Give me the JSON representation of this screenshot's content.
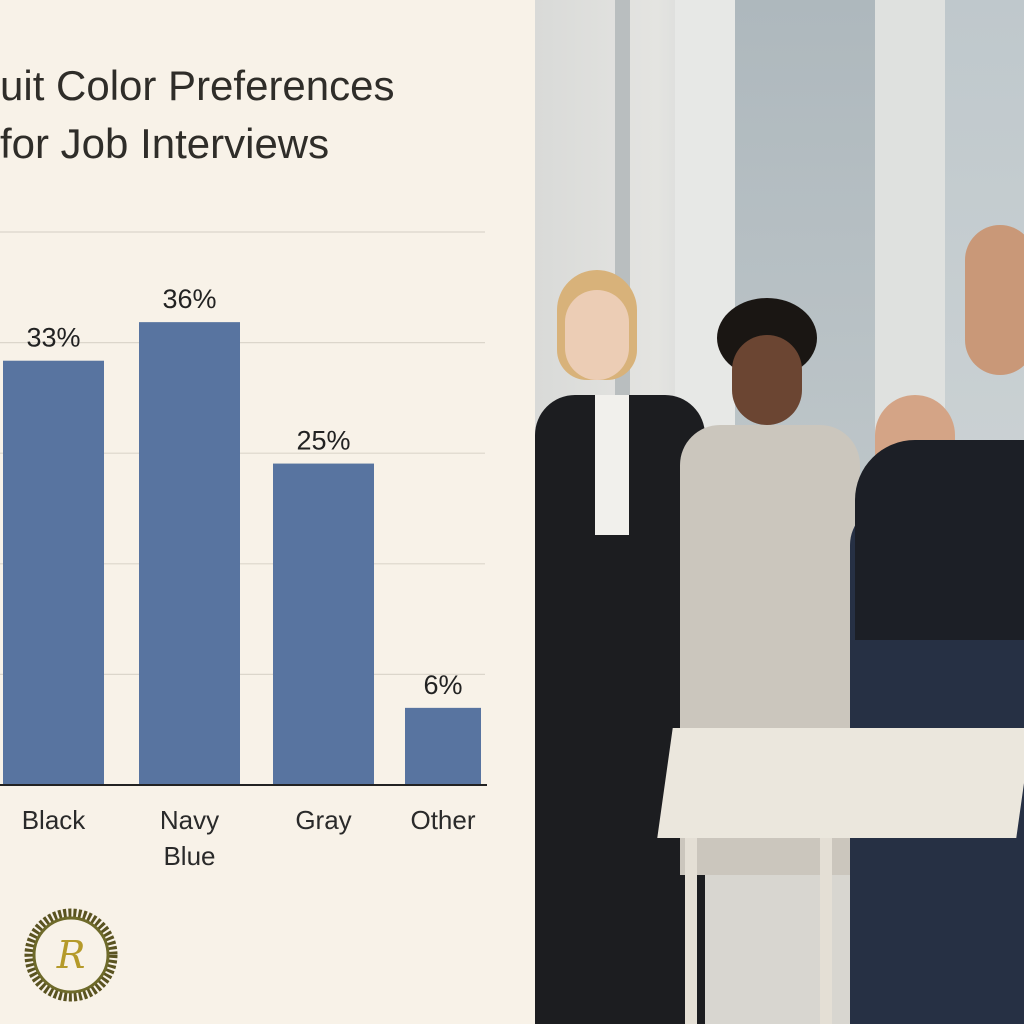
{
  "title_lines": [
    "uit Color Preferences",
    "for Job Interviews"
  ],
  "chart_data": {
    "type": "bar",
    "title": "uit Color Preferences for Job Interviews",
    "categories": [
      "Black",
      "Navy Blue",
      "Gray",
      "Other"
    ],
    "category_lines": [
      [
        "Black"
      ],
      [
        "Navy",
        "Blue"
      ],
      [
        "Gray"
      ],
      [
        "Other"
      ]
    ],
    "values": [
      33,
      36,
      25,
      6
    ],
    "data_labels": [
      "33%",
      "36%",
      "25%",
      "6%"
    ],
    "ylim": [
      0,
      40
    ],
    "grid": true,
    "bar_color": "#5874a0"
  },
  "logo": {
    "letter": "R"
  },
  "colors": {
    "background": "#f8f2e8",
    "text": "#2f2d29",
    "grid": "#dcd6cb"
  }
}
